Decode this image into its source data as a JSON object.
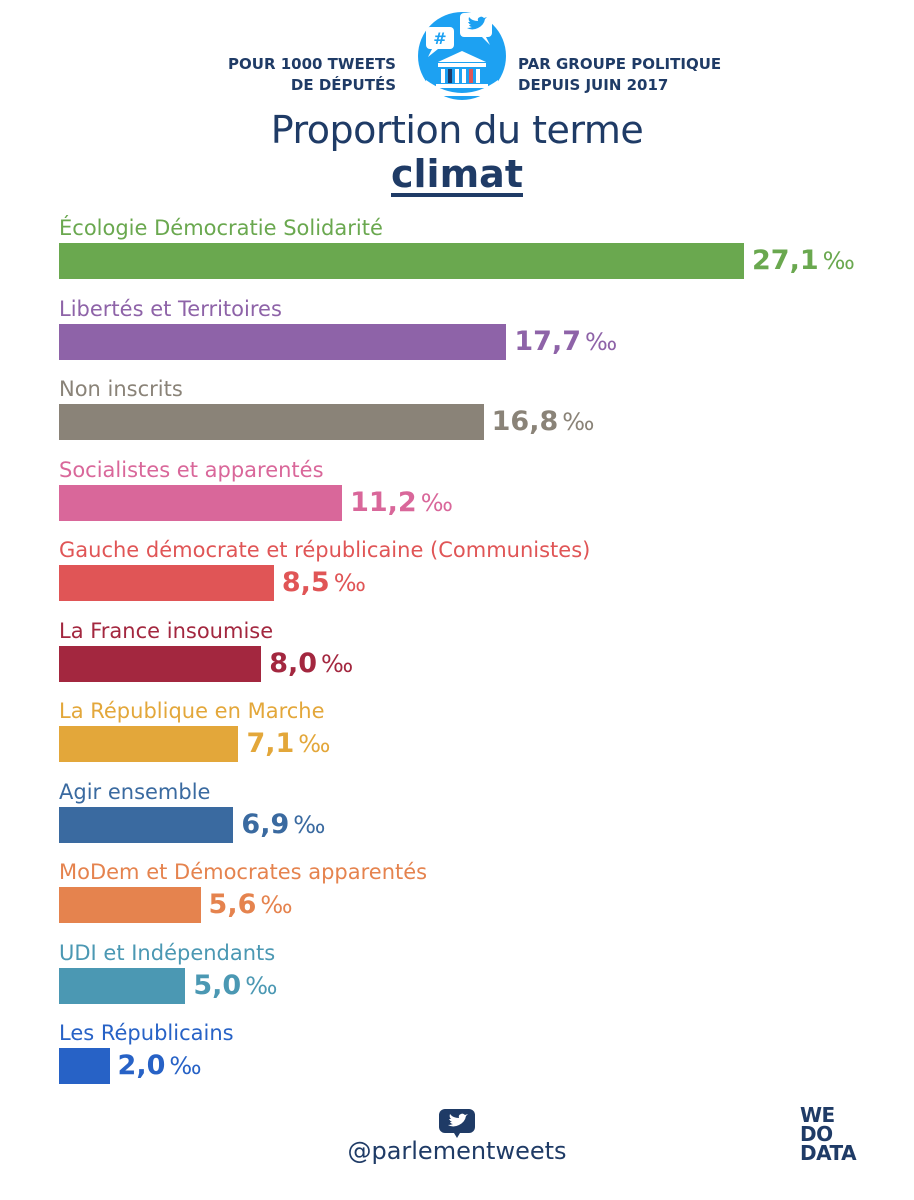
{
  "header": {
    "left_line1": "POUR 1000 TWEETS",
    "left_line2": "DE DÉPUTÉS",
    "right_line1": "PAR GROUPE POLITIQUE",
    "right_line2": "DEPUIS JUIN 2017",
    "logo_hash": "#"
  },
  "title": {
    "line1": "Proportion du terme",
    "line2": "climat"
  },
  "colors": {
    "navy": "#1f3b66",
    "logo_blue": "#1da1f2"
  },
  "chart_data": {
    "type": "bar",
    "orientation": "horizontal",
    "unit": "‰",
    "xlim": [
      0,
      30
    ],
    "categories": [
      "Écologie Démocratie Solidarité",
      "Libertés et Territoires",
      "Non inscrits",
      "Socialistes et apparentés",
      "Gauche démocrate et républicaine (Communistes)",
      "La France insoumise",
      "La République en Marche",
      "Agir ensemble",
      "MoDem et Démocrates apparentés",
      "UDI et Indépendants",
      "Les Républicains"
    ],
    "values": [
      27.1,
      17.7,
      16.8,
      11.2,
      8.5,
      8.0,
      7.1,
      6.9,
      5.6,
      5.0,
      2.0
    ],
    "value_labels": [
      "27,1",
      "17,7",
      "16,8",
      "11,2",
      "8,5",
      "8,0",
      "7,1",
      "6,9",
      "5,6",
      "5,0",
      "2,0"
    ],
    "colors": [
      "#6aa84f",
      "#8e63a8",
      "#8a8378",
      "#d9679a",
      "#e05556",
      "#a3273f",
      "#e3a73a",
      "#3a6aa0",
      "#e5834e",
      "#4b98b3",
      "#2762c6"
    ]
  },
  "footer": {
    "handle": "@parlementweets",
    "brand_line1": "WE",
    "brand_line2": "DO",
    "brand_line3": "DATA"
  }
}
